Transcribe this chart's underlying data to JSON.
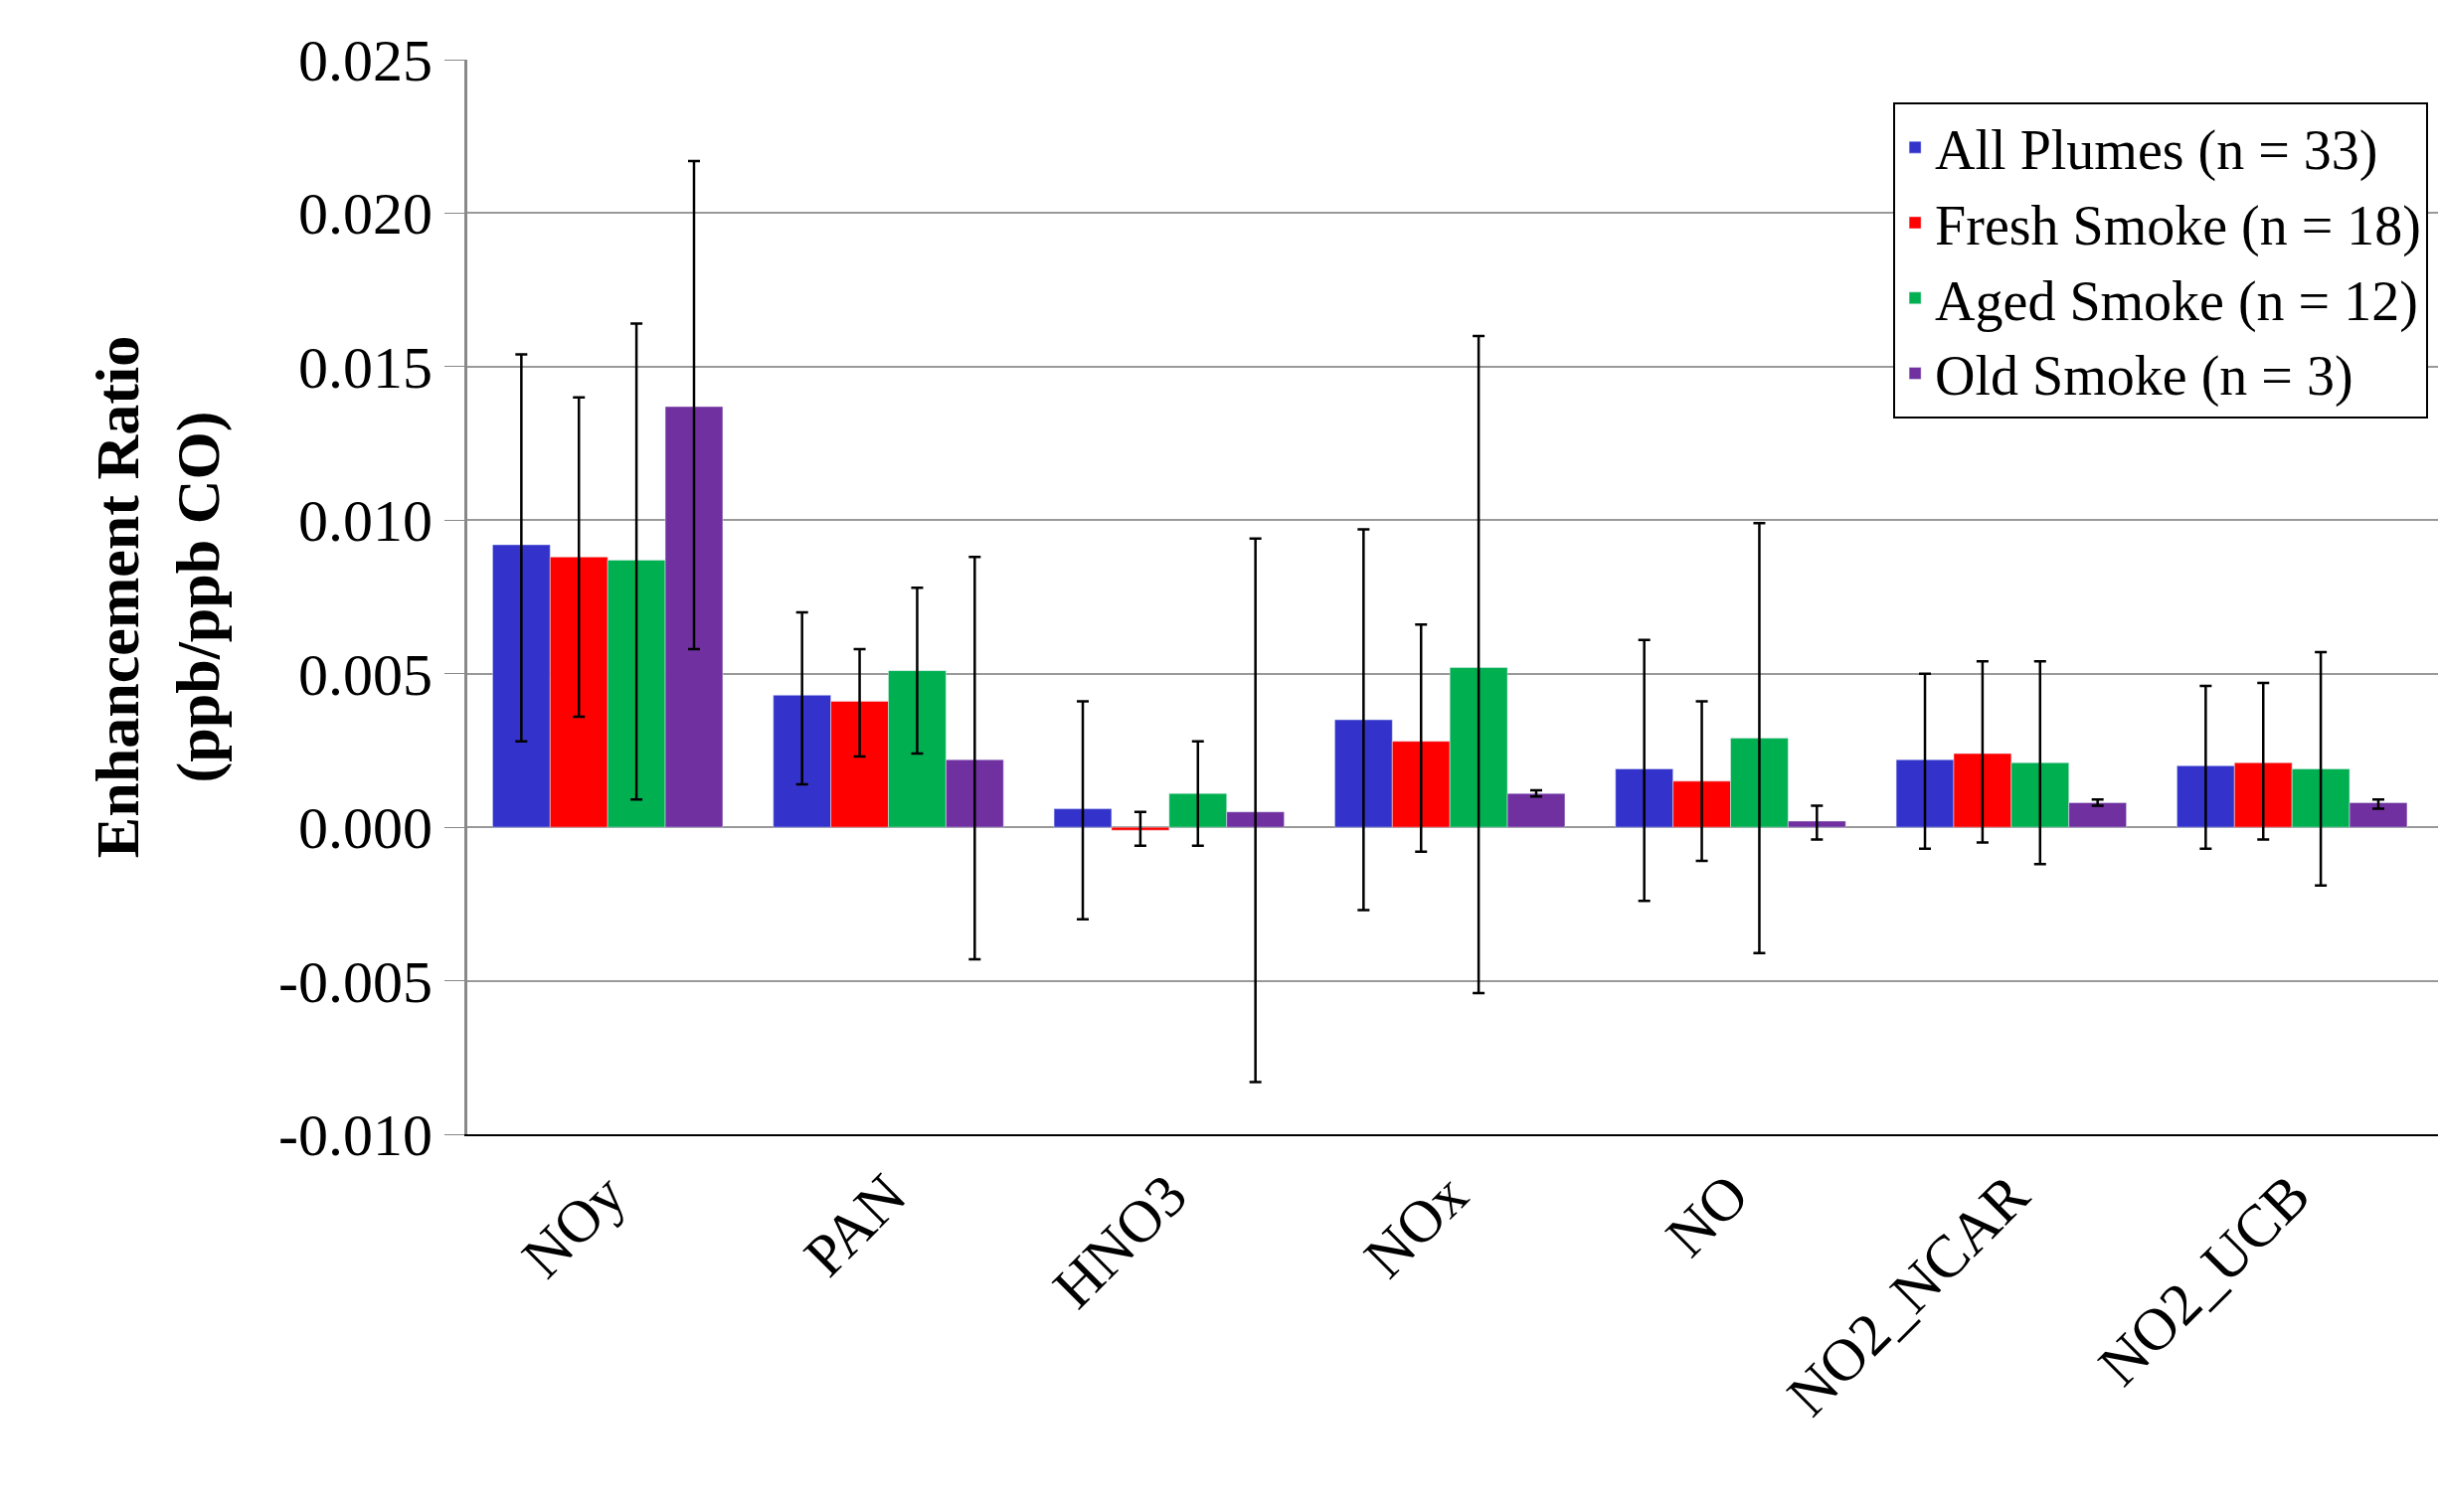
{
  "chart_data": {
    "type": "bar",
    "ylabel": "Enhancement Ratio\n(ppb/ppb CO)",
    "categories": [
      "NOy",
      "PAN",
      "HNO3",
      "NOx",
      "NO",
      "NO2_NCAR",
      "NO2_UCB"
    ],
    "series": [
      {
        "name": "All Plumes (n = 33)",
        "color": "#3333cc",
        "values": [
          0.0092,
          0.0043,
          0.0006,
          0.0035,
          0.0019,
          0.0022,
          0.002
        ],
        "errors": [
          [
            0.0028,
            0.0154
          ],
          [
            0.0014,
            0.007
          ],
          [
            -0.003,
            0.0041
          ],
          [
            -0.0027,
            0.0097
          ],
          [
            -0.0024,
            0.0061
          ],
          [
            -0.0007,
            0.005
          ],
          [
            -0.0007,
            0.0046
          ]
        ]
      },
      {
        "name": "Fresh Smoke (n = 18)",
        "color": "#ff0000",
        "values": [
          0.0088,
          0.0041,
          -0.0001,
          0.0028,
          0.0015,
          0.0024,
          0.0021
        ],
        "errors": [
          [
            0.0036,
            0.014
          ],
          [
            0.0023,
            0.0058
          ],
          [
            -0.0006,
            0.0005
          ],
          [
            -0.0008,
            0.0066
          ],
          [
            -0.0011,
            0.0041
          ],
          [
            -0.0005,
            0.0054
          ],
          [
            -0.0004,
            0.0047
          ]
        ]
      },
      {
        "name": "Aged Smoke (n = 12)",
        "color": "#00b050",
        "values": [
          0.0087,
          0.0051,
          0.0011,
          0.0052,
          0.0029,
          0.0021,
          0.0019
        ],
        "errors": [
          [
            0.0009,
            0.0164
          ],
          [
            0.0024,
            0.0078
          ],
          [
            -0.0006,
            0.0028
          ],
          [
            -0.0054,
            0.016
          ],
          [
            -0.0041,
            0.0099
          ],
          [
            -0.0012,
            0.0054
          ],
          [
            -0.0019,
            0.0057
          ]
        ]
      },
      {
        "name": "Old Smoke (n = 3)",
        "color": "#7030a0",
        "values": [
          0.0137,
          0.0022,
          0.0005,
          0.0011,
          0.0002,
          0.0008,
          0.0008
        ],
        "errors": [
          [
            0.0058,
            0.0217
          ],
          [
            -0.0043,
            0.0088
          ],
          [
            -0.0083,
            0.0094
          ],
          [
            0.001,
            0.0012
          ],
          [
            -0.0004,
            0.0007
          ],
          [
            0.0007,
            0.0009
          ],
          [
            0.0006,
            0.0009
          ]
        ]
      }
    ],
    "ylim": [
      -0.01,
      0.025
    ],
    "yticks": [
      {
        "value": -0.01,
        "label": "-0.010"
      },
      {
        "value": -0.005,
        "label": "-0.005"
      },
      {
        "value": 0,
        "label": "0.000"
      },
      {
        "value": 0.005,
        "label": "0.005"
      },
      {
        "value": 0.01,
        "label": "0.010"
      },
      {
        "value": 0.015,
        "label": "0.015"
      },
      {
        "value": 0.02,
        "label": "0.020"
      },
      {
        "value": 0.025,
        "label": "0.025"
      }
    ],
    "grid": "y",
    "legend": "top right"
  }
}
